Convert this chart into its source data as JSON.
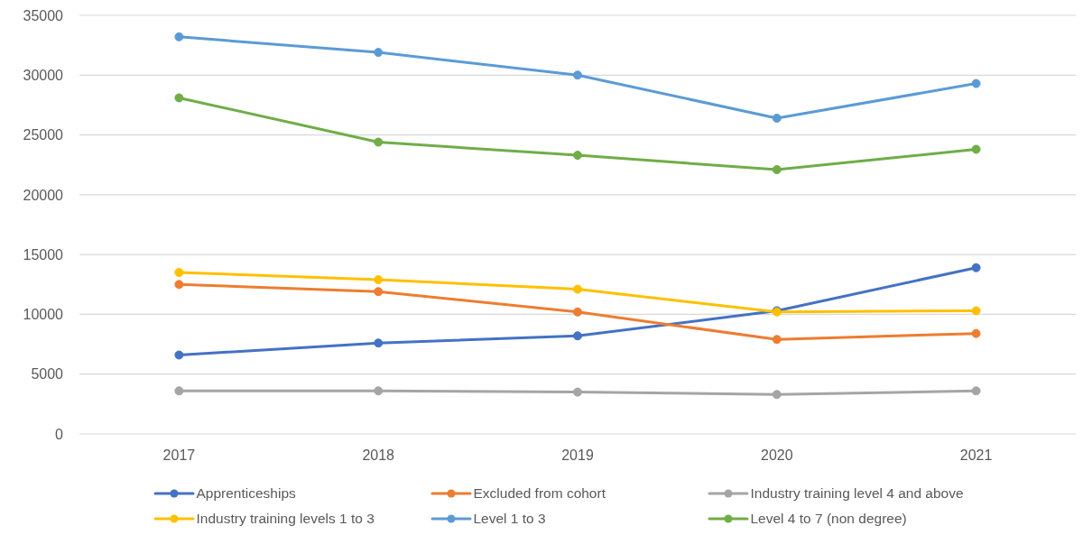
{
  "chart_data": {
    "type": "line",
    "categories": [
      "2017",
      "2018",
      "2019",
      "2020",
      "2021"
    ],
    "series": [
      {
        "name": "Apprenticeships",
        "color": "#4472c4",
        "values": [
          6600,
          7600,
          8200,
          10300,
          13900
        ]
      },
      {
        "name": "Excluded from cohort",
        "color": "#ed7d31",
        "values": [
          12500,
          11900,
          10200,
          7900,
          8400
        ]
      },
      {
        "name": "Industry training level 4 and above",
        "color": "#a5a5a5",
        "values": [
          3600,
          3600,
          3500,
          3300,
          3600
        ]
      },
      {
        "name": "Industry training levels 1 to 3",
        "color": "#ffc000",
        "values": [
          13500,
          12900,
          12100,
          10200,
          10300
        ]
      },
      {
        "name": "Level 1 to 3",
        "color": "#5b9bd5",
        "values": [
          33200,
          31900,
          30000,
          26400,
          29300
        ]
      },
      {
        "name": "Level 4 to 7 (non degree)",
        "color": "#70ad47",
        "values": [
          28100,
          24400,
          23300,
          22100,
          23800
        ]
      }
    ],
    "ylim": [
      0,
      35000
    ],
    "yticks": [
      0,
      5000,
      10000,
      15000,
      20000,
      25000,
      30000,
      35000
    ],
    "grid": "y",
    "legend": "bottom",
    "marker": "circle",
    "line_style": "solid"
  }
}
